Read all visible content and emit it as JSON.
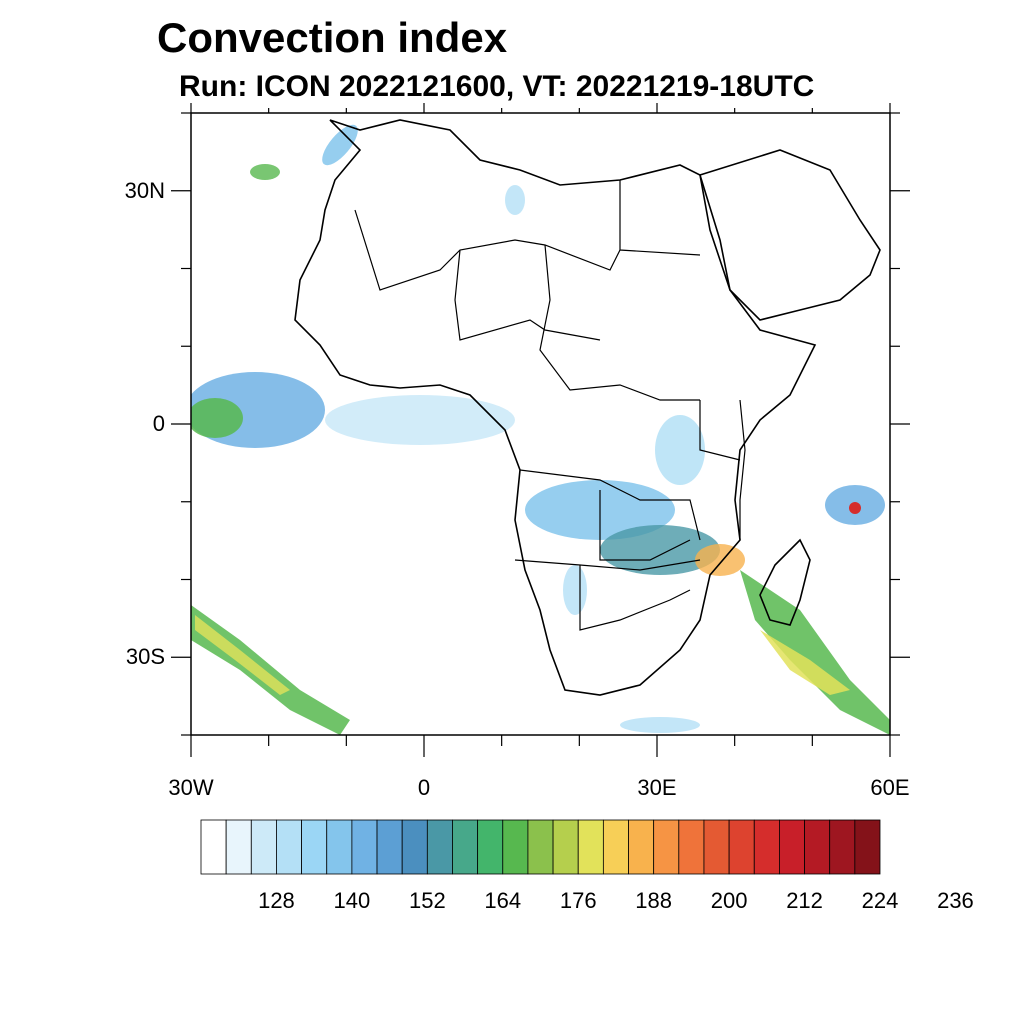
{
  "title": "Convection index",
  "subtitle": "Run: ICON 2022121600,  VT: 20221219-18UTC",
  "map": {
    "lat_labels": [
      {
        "text": "30N",
        "lat": 30
      },
      {
        "text": "0",
        "lat": 0
      },
      {
        "text": "30S",
        "lat": -30
      }
    ],
    "lon_labels": [
      {
        "text": "30W",
        "lon": -30
      },
      {
        "text": "0",
        "lon": 0
      },
      {
        "text": "30E",
        "lon": 30
      },
      {
        "text": "60E",
        "lon": 60
      }
    ],
    "extent": {
      "lon_min": -30,
      "lon_max": 60,
      "lat_min": -40,
      "lat_max": 40
    },
    "land_color": "#ffffff",
    "border_color": "#000000"
  },
  "colorbar": {
    "colors": [
      "#ffffff",
      "#e8f5fc",
      "#cdeaf8",
      "#b4e0f6",
      "#9bd6f5",
      "#84c5ec",
      "#70b2e4",
      "#5c9fd4",
      "#4b8fbf",
      "#4a98a6",
      "#47a88a",
      "#43b56b",
      "#57b84f",
      "#8bc14c",
      "#b5cf4d",
      "#e2e25a",
      "#f7cf57",
      "#f8b24d",
      "#f69444",
      "#ef733a",
      "#e45a33",
      "#dd432f",
      "#d52d2c",
      "#c81f29",
      "#b41a24",
      "#9e1620",
      "#841219"
    ],
    "tick_labels": [
      "128",
      "140",
      "152",
      "164",
      "176",
      "188",
      "200",
      "212",
      "224",
      "236"
    ]
  }
}
